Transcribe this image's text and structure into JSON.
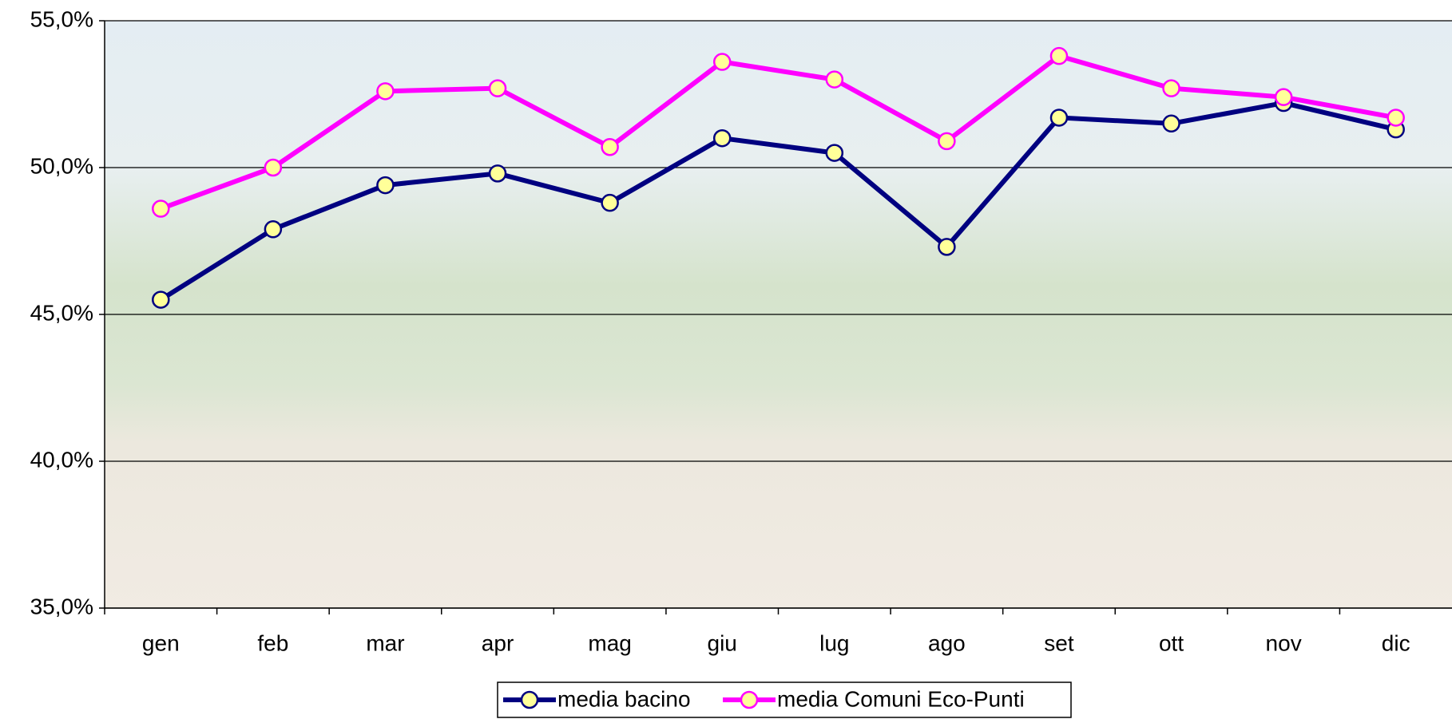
{
  "chart_data": {
    "type": "line",
    "categories": [
      "gen",
      "feb",
      "mar",
      "apr",
      "mag",
      "giu",
      "lug",
      "ago",
      "set",
      "ott",
      "nov",
      "dic"
    ],
    "series": [
      {
        "name": "media bacino",
        "color": "#000080",
        "marker_color": "#ffff99",
        "values": [
          45.5,
          47.9,
          49.4,
          49.8,
          48.8,
          51.0,
          50.5,
          47.3,
          51.7,
          51.5,
          52.2,
          51.3
        ]
      },
      {
        "name": "media Comuni Eco-Punti",
        "color": "#ff00ff",
        "marker_color": "#ffff99",
        "values": [
          48.6,
          50.0,
          52.6,
          52.7,
          50.7,
          53.6,
          53.0,
          50.9,
          53.8,
          52.7,
          52.4,
          51.7
        ]
      }
    ],
    "ylim": [
      35,
      55
    ],
    "yticks": [
      {
        "value": 35,
        "label": "35,0%"
      },
      {
        "value": 40,
        "label": "40,0%"
      },
      {
        "value": 45,
        "label": "45,0%"
      },
      {
        "value": 50,
        "label": "50,0%"
      },
      {
        "value": 55,
        "label": "55,0%"
      }
    ],
    "grid": true,
    "legend": "bottom"
  }
}
